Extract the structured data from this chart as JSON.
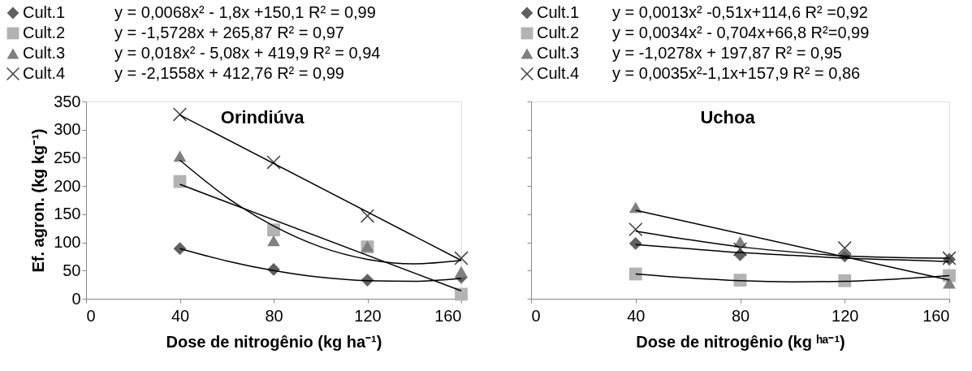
{
  "chart_data": [
    {
      "type": "scatter",
      "title": "Orindiúva",
      "xlabel": "Dose de nitrogênio (kg ha⁻¹)",
      "ylabel": "Ef. agron. (kg kg⁻¹)",
      "x": [
        40,
        80,
        120,
        160
      ],
      "xlim": [
        0,
        160
      ],
      "xticks": [
        0,
        40,
        80,
        120,
        160
      ],
      "ylim": [
        0,
        350
      ],
      "yticks": [
        0,
        50,
        100,
        150,
        200,
        250,
        300,
        350
      ],
      "grid": false,
      "legend": "top left",
      "annotations": [
        "y = 0,0068x² - 1,8x +150,1 R² = 0,99",
        "y = -1,5728x + 265,87 R² = 0,97",
        "y = 0,018x² - 5,08x + 419,9 R² = 0,94",
        "y = -2,1558x + 412,76 R² = 0,99"
      ],
      "series": [
        {
          "name": "Cult.1",
          "color": "#606060",
          "marker": "diamond",
          "values": [
            89,
            52,
            33,
            38
          ]
        },
        {
          "name": "Cult.2",
          "color": "#b3b3b3",
          "marker": "square",
          "values": [
            208,
            122,
            92,
            8
          ]
        },
        {
          "name": "Cult.3",
          "color": "#808080",
          "marker": "triangle",
          "values": [
            253,
            103,
            93,
            48
          ]
        },
        {
          "name": "Cult.4",
          "color": "#404040",
          "marker": "cross",
          "values": [
            327,
            242,
            147,
            72
          ]
        },
        {
          "type": "line",
          "color": "#000000",
          "x": [
            40,
            60,
            80,
            100,
            120,
            140,
            160
          ],
          "values": [
            89,
            67,
            50,
            38,
            32,
            31,
            36
          ]
        },
        {
          "type": "line",
          "color": "#000000",
          "x": [
            40,
            160
          ],
          "values": [
            203,
            14
          ]
        },
        {
          "type": "line",
          "color": "#000000",
          "x": [
            40,
            60,
            80,
            100,
            120,
            140,
            160
          ],
          "values": [
            246,
            180,
            129,
            92,
            70,
            62,
            68
          ]
        },
        {
          "type": "line",
          "color": "#000000",
          "x": [
            40,
            160
          ],
          "values": [
            326,
            68
          ]
        }
      ]
    },
    {
      "type": "scatter",
      "title": "Uchoa",
      "xlabel": "Dose de nitrogênio (kg ʰᵃ⁻¹)",
      "x": [
        40,
        80,
        120,
        160
      ],
      "xlim": [
        0,
        160
      ],
      "xticks": [
        0,
        40,
        80,
        120,
        160
      ],
      "ylim": [
        0,
        350
      ],
      "yticks": [
        0,
        50,
        100,
        150,
        200,
        250,
        300,
        350
      ],
      "tick_labels": "x",
      "grid": false,
      "legend": "top left",
      "annotations": [
        "y = 0,0013x² -0,51x+114,6 R² =0,92",
        "y = 0,0034x² - 0,704x+66,8 R²=0,99",
        "y = -1,0278x + 197,87 R² = 0,95",
        "y = 0,0035x²-1,1x+157,9 R² = 0,86"
      ],
      "series": [
        {
          "name": "Cult.1",
          "color": "#606060",
          "marker": "diamond",
          "values": [
            98,
            78,
            76,
            70
          ]
        },
        {
          "name": "Cult.2",
          "color": "#b3b3b3",
          "marker": "square",
          "values": [
            44,
            33,
            32,
            41
          ]
        },
        {
          "name": "Cult.3",
          "color": "#808080",
          "marker": "triangle",
          "values": [
            162,
            101,
            null,
            28
          ]
        },
        {
          "name": "Cult.4",
          "color": "#404040",
          "marker": "cross",
          "values": [
            123,
            88,
            90,
            72
          ]
        },
        {
          "type": "line",
          "color": "#000000",
          "x": [
            40,
            60,
            80,
            100,
            120,
            140,
            160
          ],
          "values": [
            96,
            89,
            82,
            77,
            72,
            69,
            66
          ]
        },
        {
          "type": "line",
          "color": "#000000",
          "x": [
            40,
            60,
            80,
            100,
            120,
            140,
            160
          ],
          "values": [
            44,
            37,
            32,
            30,
            31,
            35,
            41
          ]
        },
        {
          "type": "line",
          "color": "#000000",
          "x": [
            40,
            160
          ],
          "values": [
            157,
            33
          ]
        },
        {
          "type": "line",
          "color": "#000000",
          "x": [
            40,
            60,
            80,
            100,
            120,
            140,
            160
          ],
          "values": [
            120,
            105,
            92,
            83,
            76,
            73,
            72
          ]
        }
      ]
    }
  ]
}
